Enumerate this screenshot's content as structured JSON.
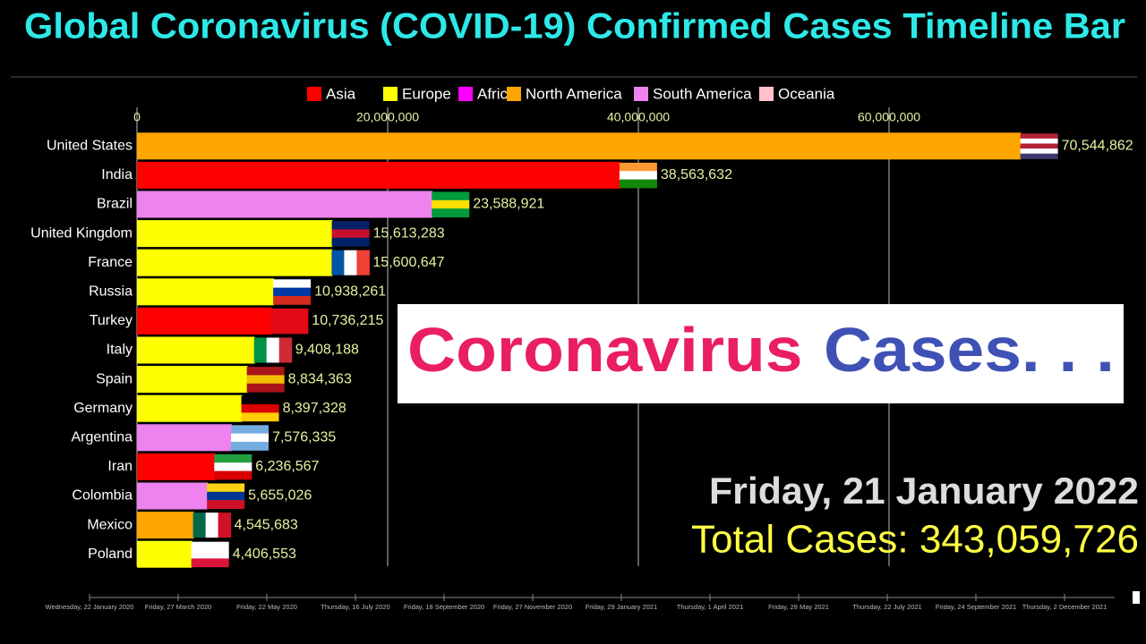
{
  "chart_data": {
    "type": "bar",
    "orientation": "horizontal",
    "title": "Global Coronavirus (COVID-19) Confirmed Cases Timeline Bar",
    "categories": [
      "United States",
      "India",
      "Brazil",
      "United Kingdom",
      "France",
      "Russia",
      "Turkey",
      "Italy",
      "Spain",
      "Germany",
      "Argentina",
      "Iran",
      "Colombia",
      "Mexico",
      "Poland"
    ],
    "series": [
      {
        "name": "Asia",
        "color": "#ff0000",
        "values": [
          null,
          38563632,
          null,
          null,
          null,
          null,
          10736215,
          null,
          null,
          null,
          null,
          6236567,
          null,
          null,
          null
        ],
        "value_labels": [
          null,
          "38,563,632",
          null,
          null,
          null,
          null,
          "10,736,215",
          null,
          null,
          null,
          null,
          "6,236,567",
          null,
          null,
          null
        ]
      },
      {
        "name": "Europe",
        "color": "#ffff00",
        "values": [
          null,
          null,
          null,
          15613283,
          15600647,
          10938261,
          null,
          9408188,
          8834363,
          8397328,
          null,
          null,
          null,
          null,
          4406553
        ],
        "value_labels": [
          null,
          null,
          null,
          "15,613,283",
          "15,600,647",
          "10,938,261",
          null,
          "9,408,188",
          "8,834,363",
          "8,397,328",
          null,
          null,
          null,
          null,
          "4,406,553"
        ]
      },
      {
        "name": "Africa",
        "color": "#ff00ff",
        "values": [
          null,
          null,
          null,
          null,
          null,
          null,
          null,
          null,
          null,
          null,
          null,
          null,
          null,
          null,
          null
        ],
        "value_labels": [
          null,
          null,
          null,
          null,
          null,
          null,
          null,
          null,
          null,
          null,
          null,
          null,
          null,
          null,
          null
        ]
      },
      {
        "name": "North America",
        "color": "#ffa500",
        "values": [
          70544862,
          null,
          null,
          null,
          null,
          null,
          null,
          null,
          null,
          null,
          null,
          null,
          null,
          4545683,
          null
        ],
        "value_labels": [
          "70,544,862",
          null,
          null,
          null,
          null,
          null,
          null,
          null,
          null,
          null,
          null,
          null,
          null,
          "4,545,683",
          null
        ]
      },
      {
        "name": "South America",
        "color": "#ee82ee",
        "values": [
          null,
          null,
          23588921,
          null,
          null,
          null,
          null,
          null,
          null,
          null,
          7576335,
          null,
          5655026,
          null,
          null
        ],
        "value_labels": [
          null,
          null,
          "23,588,921",
          null,
          null,
          null,
          null,
          null,
          null,
          null,
          "7,576,335",
          null,
          "5,655,026",
          null,
          null
        ]
      },
      {
        "name": "Oceania",
        "color": "#ffc0cb",
        "values": [
          null,
          null,
          null,
          null,
          null,
          null,
          null,
          null,
          null,
          null,
          null,
          null,
          null,
          null,
          null
        ],
        "value_labels": [
          null,
          null,
          null,
          null,
          null,
          null,
          null,
          null,
          null,
          null,
          null,
          null,
          null,
          null,
          null
        ]
      }
    ],
    "xlim": [
      0,
      80000000
    ],
    "xticks": [
      0,
      {
        "value": 20000000,
        "label": "20,000,000"
      },
      {
        "value": 40000000,
        "label": "40,000,000"
      },
      {
        "value": 60000000,
        "label": "60,000,000"
      }
    ],
    "grid": true,
    "legend": "top",
    "date": "Friday, 21 January 2022",
    "total": "Total Cases: 343,059,726",
    "timeline_labels": [
      "Wednesday, 22 January 2020",
      "Friday, 27 March 2020",
      "Friday, 22 May 2020",
      "Thursday, 16 July 2020",
      "Friday, 18 September 2020",
      "Friday, 27 November 2020",
      "Friday, 29 January 2021",
      "Thursday, 1 April 2021",
      "Friday, 28 May 2021",
      "Thursday, 22 July 2021",
      "Friday, 24 September 2021",
      "Thursday, 2 December 2021"
    ]
  },
  "banner": {
    "word1": "Coronavirus",
    "word2": "Cases. . ."
  }
}
